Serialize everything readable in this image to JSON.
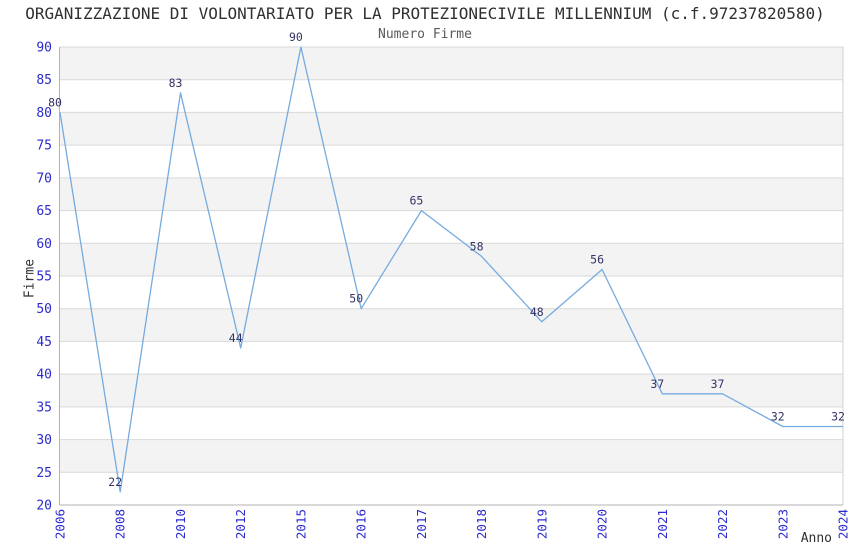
{
  "chart_data": {
    "type": "line",
    "title": "ORGANIZZAZIONE DI VOLONTARIATO PER LA PROTEZIONECIVILE MILLENNIUM (c.f.97237820580)",
    "subtitle": "Numero Firme",
    "xlabel": "Anno",
    "ylabel": "Firme",
    "categories": [
      "2006",
      "2008",
      "2010",
      "2012",
      "2015",
      "2016",
      "2017",
      "2018",
      "2019",
      "2020",
      "2021",
      "2022",
      "2023",
      "2024"
    ],
    "values": [
      80,
      22,
      83,
      44,
      90,
      50,
      65,
      58,
      48,
      56,
      37,
      37,
      32,
      32
    ],
    "ylim": [
      20,
      90
    ],
    "ytick_step": 5,
    "legend": "none",
    "grid": "horizontal gridlines every 5, alternating gray/white bands",
    "colors": {
      "line": "#76abdf",
      "tick_label": "#2b2bcf",
      "data_label": "#333366",
      "stripe": "#f3f3f3",
      "gridline": "#d9d9d9",
      "axis": "#b3b3b3",
      "plot_border": "#d2d2d2",
      "title": "#303030",
      "subtitle": "#5a5a5a"
    }
  }
}
